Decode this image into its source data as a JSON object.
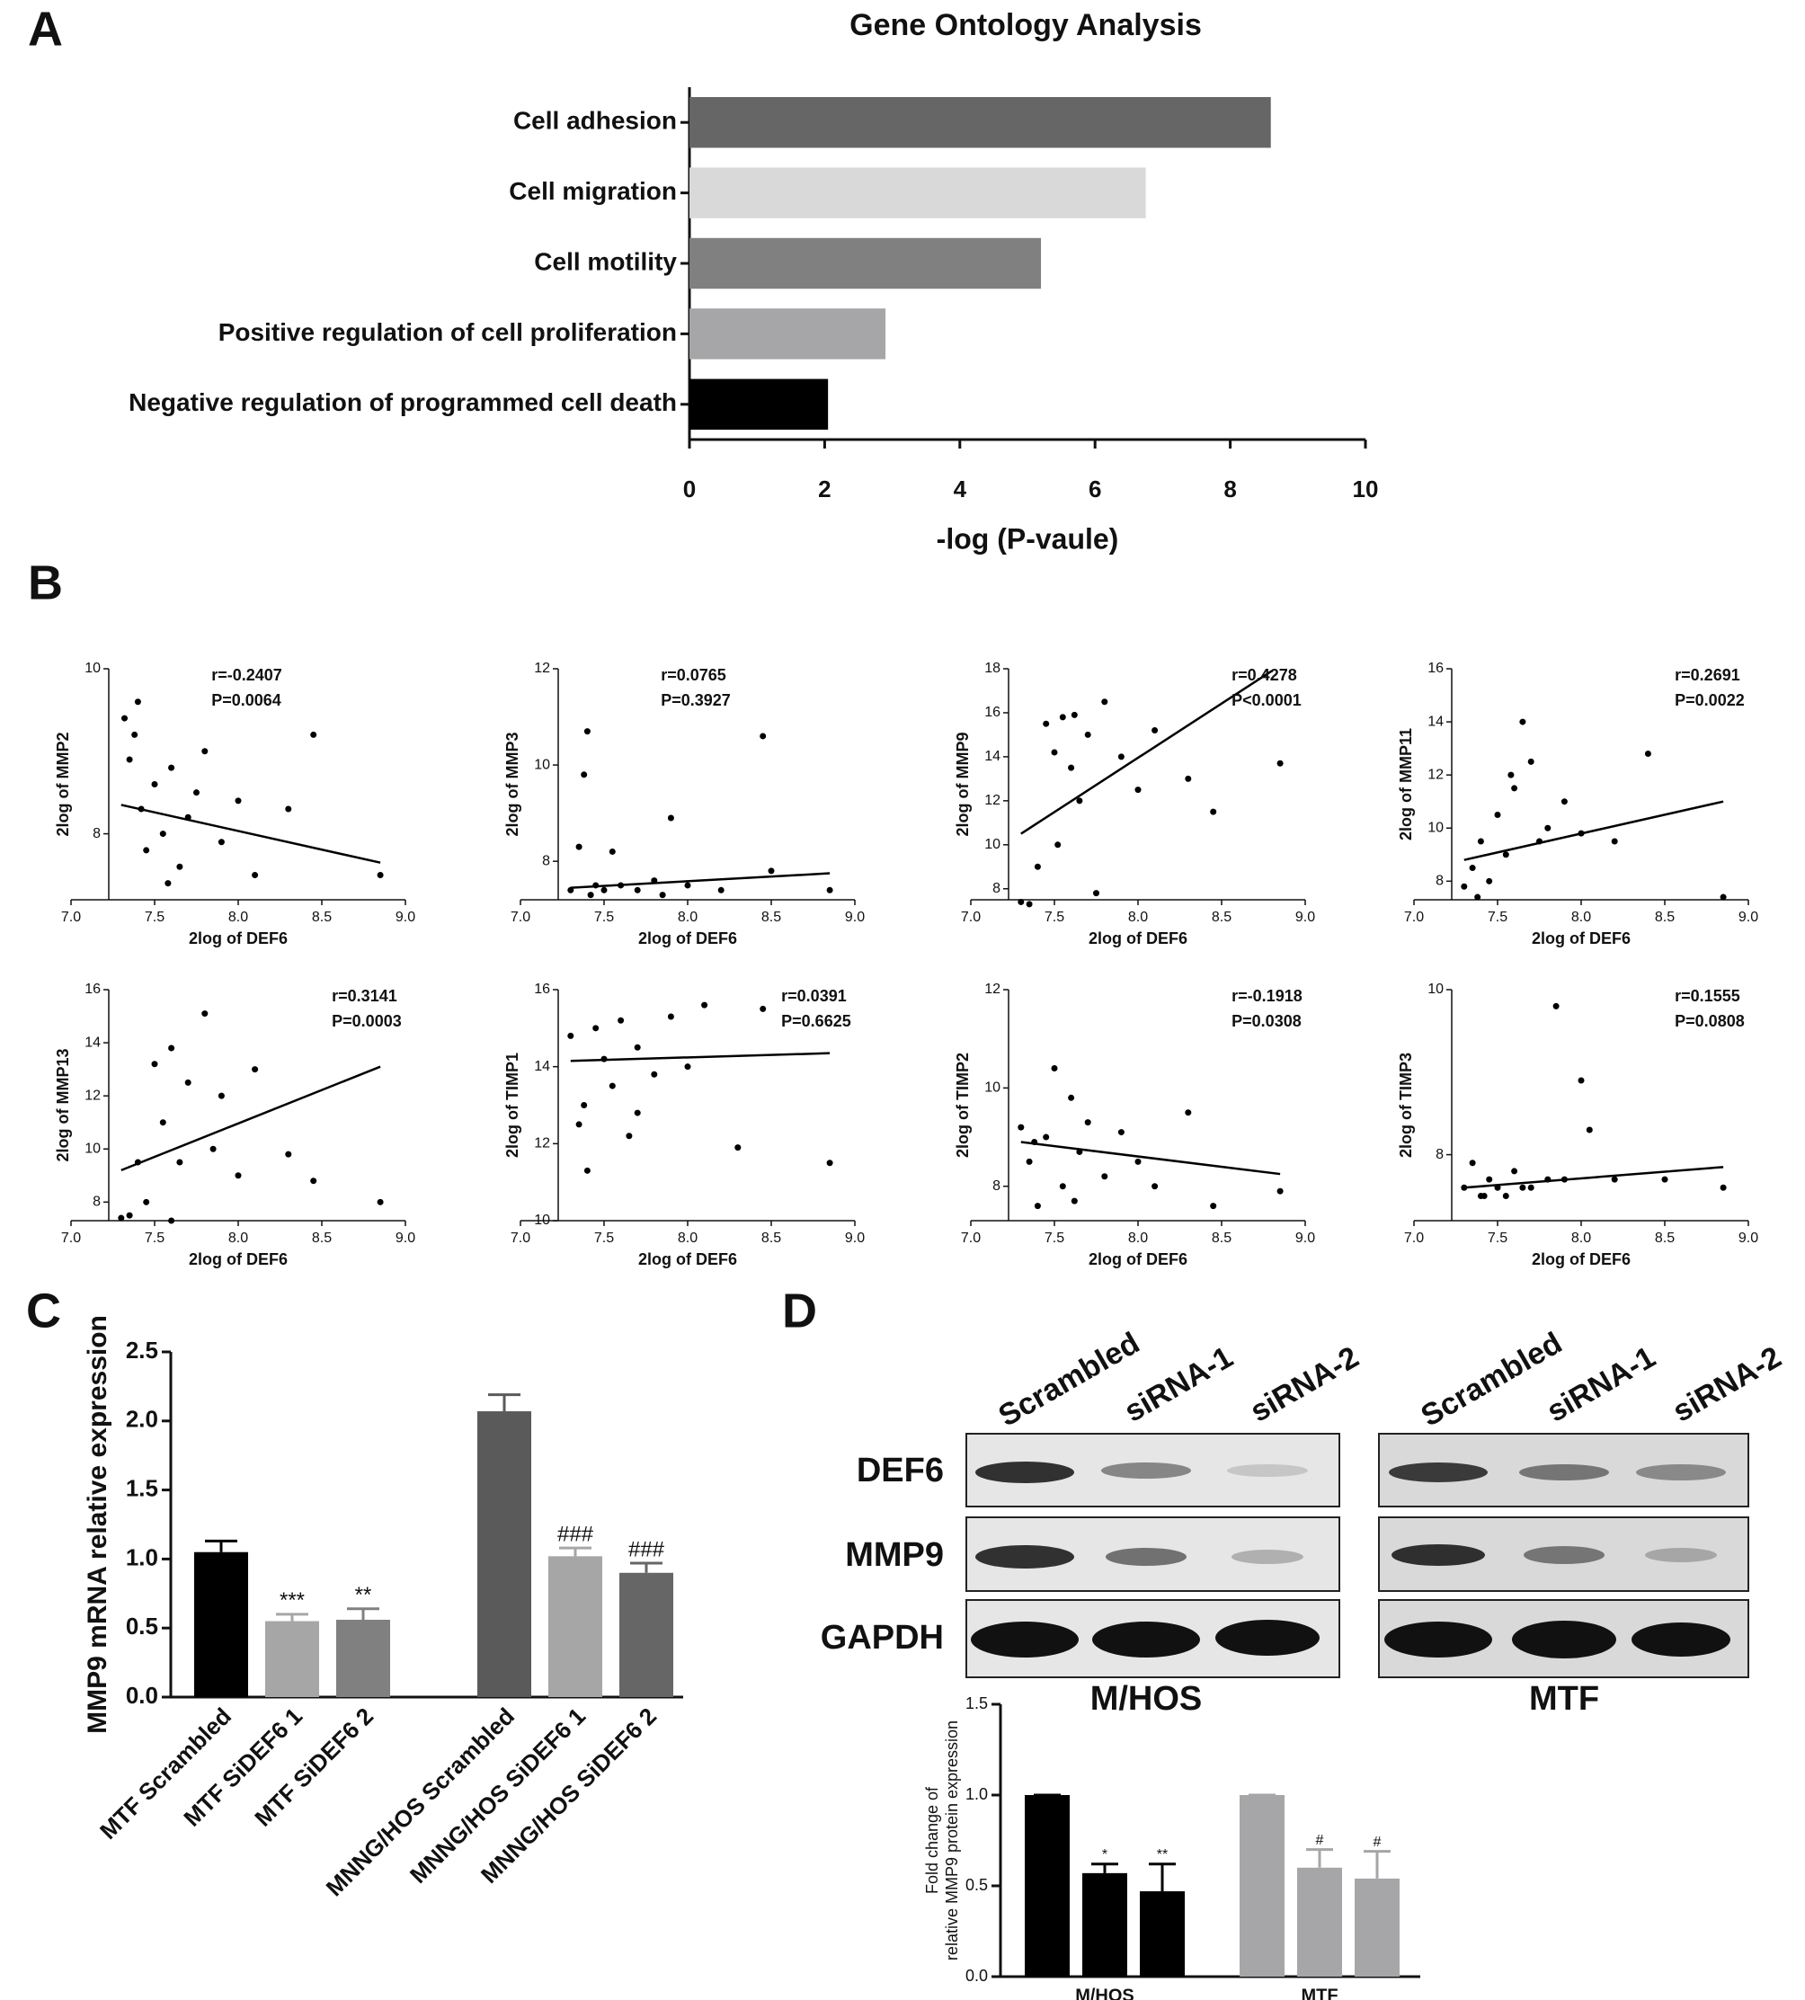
{
  "chart_data": [
    {
      "type": "bar",
      "orientation": "horizontal",
      "panel": "A",
      "title": "Gene Ontology Analysis",
      "xlabel": "-log (P-vaule)",
      "categories": [
        "Cell adhesion",
        "Cell migration",
        "Cell motility",
        "Positive regulation of cell proliferation",
        "Negative regulation of programmed cell death"
      ],
      "values": [
        8.6,
        6.75,
        5.2,
        2.9,
        2.05
      ],
      "colors": [
        "#666666",
        "#d9d9d9",
        "#808080",
        "#a6a6a8",
        "#000000"
      ],
      "xlim": [
        0,
        10
      ],
      "xticks": [
        0,
        2,
        4,
        6,
        8,
        10
      ]
    },
    {
      "type": "scatter",
      "panel": "B",
      "ylabel": "2log of MMP2",
      "xlabel": "2log of DEF6",
      "annotation": [
        "r=-0.2407",
        "P=0.0064"
      ],
      "x": [
        7.32,
        7.35,
        7.38,
        7.4,
        7.45,
        7.5,
        7.55,
        7.6,
        7.65,
        7.7,
        7.8,
        7.9,
        8.0,
        8.1,
        8.3,
        8.45,
        8.85,
        7.42,
        7.58,
        7.75
      ],
      "y": [
        9.4,
        8.9,
        9.2,
        9.6,
        7.8,
        8.6,
        8.0,
        8.8,
        7.6,
        8.2,
        9.0,
        7.9,
        8.4,
        7.5,
        8.3,
        9.2,
        7.5,
        8.3,
        7.4,
        8.5
      ],
      "fit": {
        "x": [
          7.3,
          8.85
        ],
        "y": [
          8.35,
          7.65
        ]
      },
      "xlim": [
        7,
        9
      ],
      "xticks": [
        {
          "value": 7,
          "label": "7.0"
        },
        7.5,
        {
          "value": 8,
          "label": "8.0"
        },
        8.5,
        {
          "value": 9,
          "label": "9.0"
        }
      ],
      "ylim": [
        7.2,
        10
      ],
      "yticks": [
        8,
        10
      ]
    },
    {
      "type": "scatter",
      "ylabel": "2log of MMP3",
      "xlabel": "2log of DEF6",
      "annotation": [
        "r=0.0765",
        "P=0.3927"
      ],
      "x": [
        7.3,
        7.35,
        7.4,
        7.45,
        7.5,
        7.55,
        7.6,
        7.7,
        7.8,
        7.9,
        8.0,
        8.2,
        8.5,
        7.38,
        7.42,
        7.85,
        8.45,
        8.85
      ],
      "y": [
        7.4,
        8.3,
        10.7,
        7.5,
        7.4,
        8.2,
        7.5,
        7.4,
        7.6,
        8.9,
        7.5,
        7.4,
        7.8,
        9.8,
        7.3,
        7.3,
        10.6,
        7.4
      ],
      "fit": {
        "x": [
          7.3,
          8.85
        ],
        "y": [
          7.45,
          7.75
        ]
      },
      "xlim": [
        7,
        9
      ],
      "xticks": [
        {
          "value": 7,
          "label": "7.0"
        },
        7.5,
        {
          "value": 8,
          "label": "8.0"
        },
        8.5,
        {
          "value": 9,
          "label": "9.0"
        }
      ],
      "ylim": [
        7.2,
        12
      ],
      "yticks": [
        8,
        10,
        12
      ]
    },
    {
      "type": "scatter",
      "ylabel": "2log of MMP9",
      "xlabel": "2log of DEF6",
      "annotation": [
        "r=0.4278",
        "P<0.0001"
      ],
      "x": [
        7.3,
        7.35,
        7.4,
        7.45,
        7.5,
        7.55,
        7.6,
        7.65,
        7.7,
        7.75,
        7.8,
        7.9,
        8.0,
        8.1,
        8.3,
        8.45,
        8.85,
        7.52,
        7.62
      ],
      "y": [
        7.4,
        7.3,
        9.0,
        15.5,
        14.2,
        15.8,
        13.5,
        12.0,
        15.0,
        7.8,
        16.5,
        14.0,
        12.5,
        15.2,
        13.0,
        11.5,
        13.7,
        10.0,
        15.9
      ],
      "fit": {
        "x": [
          7.3,
          8.8
        ],
        "y": [
          10.5,
          17.9
        ]
      },
      "xlim": [
        7,
        9
      ],
      "xticks": [
        {
          "value": 7,
          "label": "7.0"
        },
        7.5,
        {
          "value": 8,
          "label": "8.0"
        },
        8.5,
        {
          "value": 9,
          "label": "9.0"
        }
      ],
      "ylim": [
        7.5,
        18
      ],
      "yticks": [
        8,
        10,
        12,
        14,
        16,
        18
      ]
    },
    {
      "type": "scatter",
      "ylabel": "2log of MMP11",
      "xlabel": "2log of DEF6",
      "annotation": [
        "r=0.2691",
        "P=0.0022"
      ],
      "x": [
        7.3,
        7.35,
        7.4,
        7.45,
        7.5,
        7.55,
        7.6,
        7.65,
        7.7,
        7.75,
        7.8,
        7.9,
        8.0,
        8.2,
        8.4,
        8.85,
        7.38,
        7.58
      ],
      "y": [
        7.8,
        8.5,
        9.5,
        8.0,
        10.5,
        9.0,
        11.5,
        14.0,
        12.5,
        9.5,
        10.0,
        11.0,
        9.8,
        9.5,
        12.8,
        7.4,
        7.4,
        12.0
      ],
      "fit": {
        "x": [
          7.3,
          8.85
        ],
        "y": [
          8.8,
          11
        ]
      },
      "xlim": [
        7,
        9
      ],
      "xticks": [
        {
          "value": 7,
          "label": "7.0"
        },
        7.5,
        {
          "value": 8,
          "label": "8.0"
        },
        8.5,
        {
          "value": 9,
          "label": "9.0"
        }
      ],
      "ylim": [
        7.3,
        16
      ],
      "yticks": [
        8,
        10,
        12,
        14,
        16
      ]
    },
    {
      "type": "scatter",
      "ylabel": "2log of MMP13",
      "xlabel": "2log of DEF6",
      "annotation": [
        "r=0.3141",
        "P=0.0003"
      ],
      "x": [
        7.3,
        7.35,
        7.4,
        7.45,
        7.5,
        7.55,
        7.6,
        7.65,
        7.7,
        7.8,
        7.85,
        7.9,
        8.0,
        8.1,
        8.3,
        8.45,
        8.85,
        7.6
      ],
      "y": [
        7.4,
        7.5,
        9.5,
        8.0,
        13.2,
        11.0,
        13.8,
        9.5,
        12.5,
        15.1,
        10.0,
        12.0,
        9.0,
        13.0,
        9.8,
        8.8,
        8.0,
        7.3
      ],
      "fit": {
        "x": [
          7.3,
          8.85
        ],
        "y": [
          9.2,
          13.1
        ]
      },
      "xlim": [
        7,
        9
      ],
      "xticks": [
        {
          "value": 7,
          "label": "7.0"
        },
        7.5,
        {
          "value": 8,
          "label": "8.0"
        },
        8.5,
        {
          "value": 9,
          "label": "9.0"
        }
      ],
      "ylim": [
        7.3,
        16
      ],
      "yticks": [
        8,
        10,
        12,
        14,
        16
      ]
    },
    {
      "type": "scatter",
      "ylabel": "2log of TIMP1",
      "xlabel": "2log of DEF6",
      "annotation": [
        "r=0.0391",
        "P=0.6625"
      ],
      "x": [
        7.3,
        7.35,
        7.4,
        7.45,
        7.5,
        7.55,
        7.6,
        7.65,
        7.7,
        7.8,
        7.9,
        8.0,
        8.1,
        8.3,
        8.45,
        8.85,
        7.38,
        7.7
      ],
      "y": [
        14.8,
        12.5,
        11.3,
        15.0,
        14.2,
        13.5,
        15.2,
        12.2,
        14.5,
        13.8,
        15.3,
        14.0,
        15.6,
        11.9,
        15.5,
        11.5,
        13.0,
        12.8
      ],
      "fit": {
        "x": [
          7.3,
          8.85
        ],
        "y": [
          14.15,
          14.35
        ]
      },
      "xlim": [
        7,
        9
      ],
      "xticks": [
        {
          "value": 7,
          "label": "7.0"
        },
        7.5,
        {
          "value": 8,
          "label": "8.0"
        },
        8.5,
        {
          "value": 9,
          "label": "9.0"
        }
      ],
      "ylim": [
        10,
        16
      ],
      "yticks": [
        10,
        12,
        14,
        16
      ]
    },
    {
      "type": "scatter",
      "panel_row": 2,
      "ylabel": "2log of TIMP2",
      "xlabel": "2log of DEF6",
      "annotation": [
        "r=-0.1918",
        "P=0.0308"
      ],
      "x": [
        7.3,
        7.35,
        7.4,
        7.45,
        7.5,
        7.55,
        7.6,
        7.65,
        7.7,
        7.8,
        7.9,
        8.0,
        8.1,
        8.3,
        8.45,
        8.85,
        7.38,
        7.62
      ],
      "y": [
        9.2,
        8.5,
        7.6,
        9.0,
        10.4,
        8.0,
        9.8,
        8.7,
        9.3,
        8.2,
        9.1,
        8.5,
        8.0,
        9.5,
        7.6,
        7.9,
        8.9,
        7.7
      ],
      "fit": {
        "x": [
          7.3,
          8.85
        ],
        "y": [
          8.9,
          8.25
        ]
      },
      "xlim": [
        7,
        9
      ],
      "xticks": [
        {
          "value": 7,
          "label": "7.0"
        },
        7.5,
        {
          "value": 8,
          "label": "8.0"
        },
        8.5,
        {
          "value": 9,
          "label": "9.0"
        }
      ],
      "ylim": [
        7.3,
        12
      ],
      "yticks": [
        8,
        10,
        12
      ]
    },
    {
      "type": "scatter",
      "ylabel": "2log of TIMP3",
      "xlabel": "2log of DEF6",
      "annotation": [
        "r=0.1555",
        "P=0.0808"
      ],
      "x": [
        7.3,
        7.35,
        7.4,
        7.45,
        7.5,
        7.55,
        7.6,
        7.65,
        7.7,
        7.8,
        7.85,
        7.9,
        8.0,
        8.05,
        8.2,
        8.5,
        8.85,
        7.42
      ],
      "y": [
        7.6,
        7.9,
        7.5,
        7.7,
        7.6,
        7.5,
        7.8,
        7.6,
        7.6,
        7.7,
        9.8,
        7.7,
        8.9,
        8.3,
        7.7,
        7.7,
        7.6,
        7.5
      ],
      "fit": {
        "x": [
          7.3,
          8.85
        ],
        "y": [
          7.6,
          7.85
        ]
      },
      "xlim": [
        7,
        9
      ],
      "xticks": [
        {
          "value": 7,
          "label": "7.0"
        },
        7.5,
        {
          "value": 8,
          "label": "8.0"
        },
        8.5,
        {
          "value": 9,
          "label": "9.0"
        }
      ],
      "ylim": [
        7.2,
        10
      ],
      "yticks": [
        8,
        10
      ]
    },
    {
      "type": "bar",
      "panel": "C",
      "ylabel": "MMP9 mRNA relative expression",
      "categories": [
        "MTF Scrambled",
        "MTF SiDEF6 1",
        "MTF SiDEF6 2",
        "MNNG/HOS Scrambled",
        "MNNG/HOS SiDEF6 1",
        "MNNG/HOS SiDEF6 2"
      ],
      "values": [
        1.05,
        0.55,
        0.56,
        2.07,
        1.02,
        0.9
      ],
      "errors": [
        0.08,
        0.05,
        0.08,
        0.12,
        0.06,
        0.07
      ],
      "markers": [
        null,
        "***",
        "**",
        null,
        "###",
        "###"
      ],
      "colors": [
        "#000000",
        "#a6a6a6",
        "#808080",
        "#5a5a5a",
        "#a6a6a6",
        "#666666"
      ],
      "ylim": [
        0,
        2.5
      ],
      "yticks": [
        {
          "value": 0,
          "label": "0.0"
        },
        0.5,
        {
          "value": 1,
          "label": "1.0"
        },
        1.5,
        {
          "value": 2,
          "label": "2.0"
        },
        2.5
      ]
    },
    {
      "type": "bar",
      "panel": "D",
      "ylabel": [
        "Fold change of",
        "relative MMP9 protein expression"
      ],
      "groups": [
        {
          "label": "M/HOS",
          "color": "#000000",
          "values": [
            1.0,
            0.57,
            0.47
          ],
          "errors": [
            0,
            0.05,
            0.15
          ],
          "markers": [
            null,
            "*",
            "**"
          ]
        },
        {
          "label": "MTF",
          "color": "#a6a6a8",
          "values": [
            1.0,
            0.6,
            0.54
          ],
          "errors": [
            0,
            0.1,
            0.15
          ],
          "markers": [
            null,
            "#",
            "#"
          ]
        }
      ],
      "ylim": [
        0,
        1.5
      ],
      "yticks": [
        {
          "value": 0,
          "label": "0.0"
        },
        0.5,
        {
          "value": 1,
          "label": "1.0"
        },
        1.5
      ]
    }
  ],
  "blot": {
    "lanes": [
      "Scrambled",
      "siRNA-1",
      "siRNA-2"
    ],
    "proteins": [
      "DEF6",
      "MMP9",
      "GAPDH"
    ],
    "cell_lines": [
      "M/HOS",
      "MTF"
    ]
  }
}
